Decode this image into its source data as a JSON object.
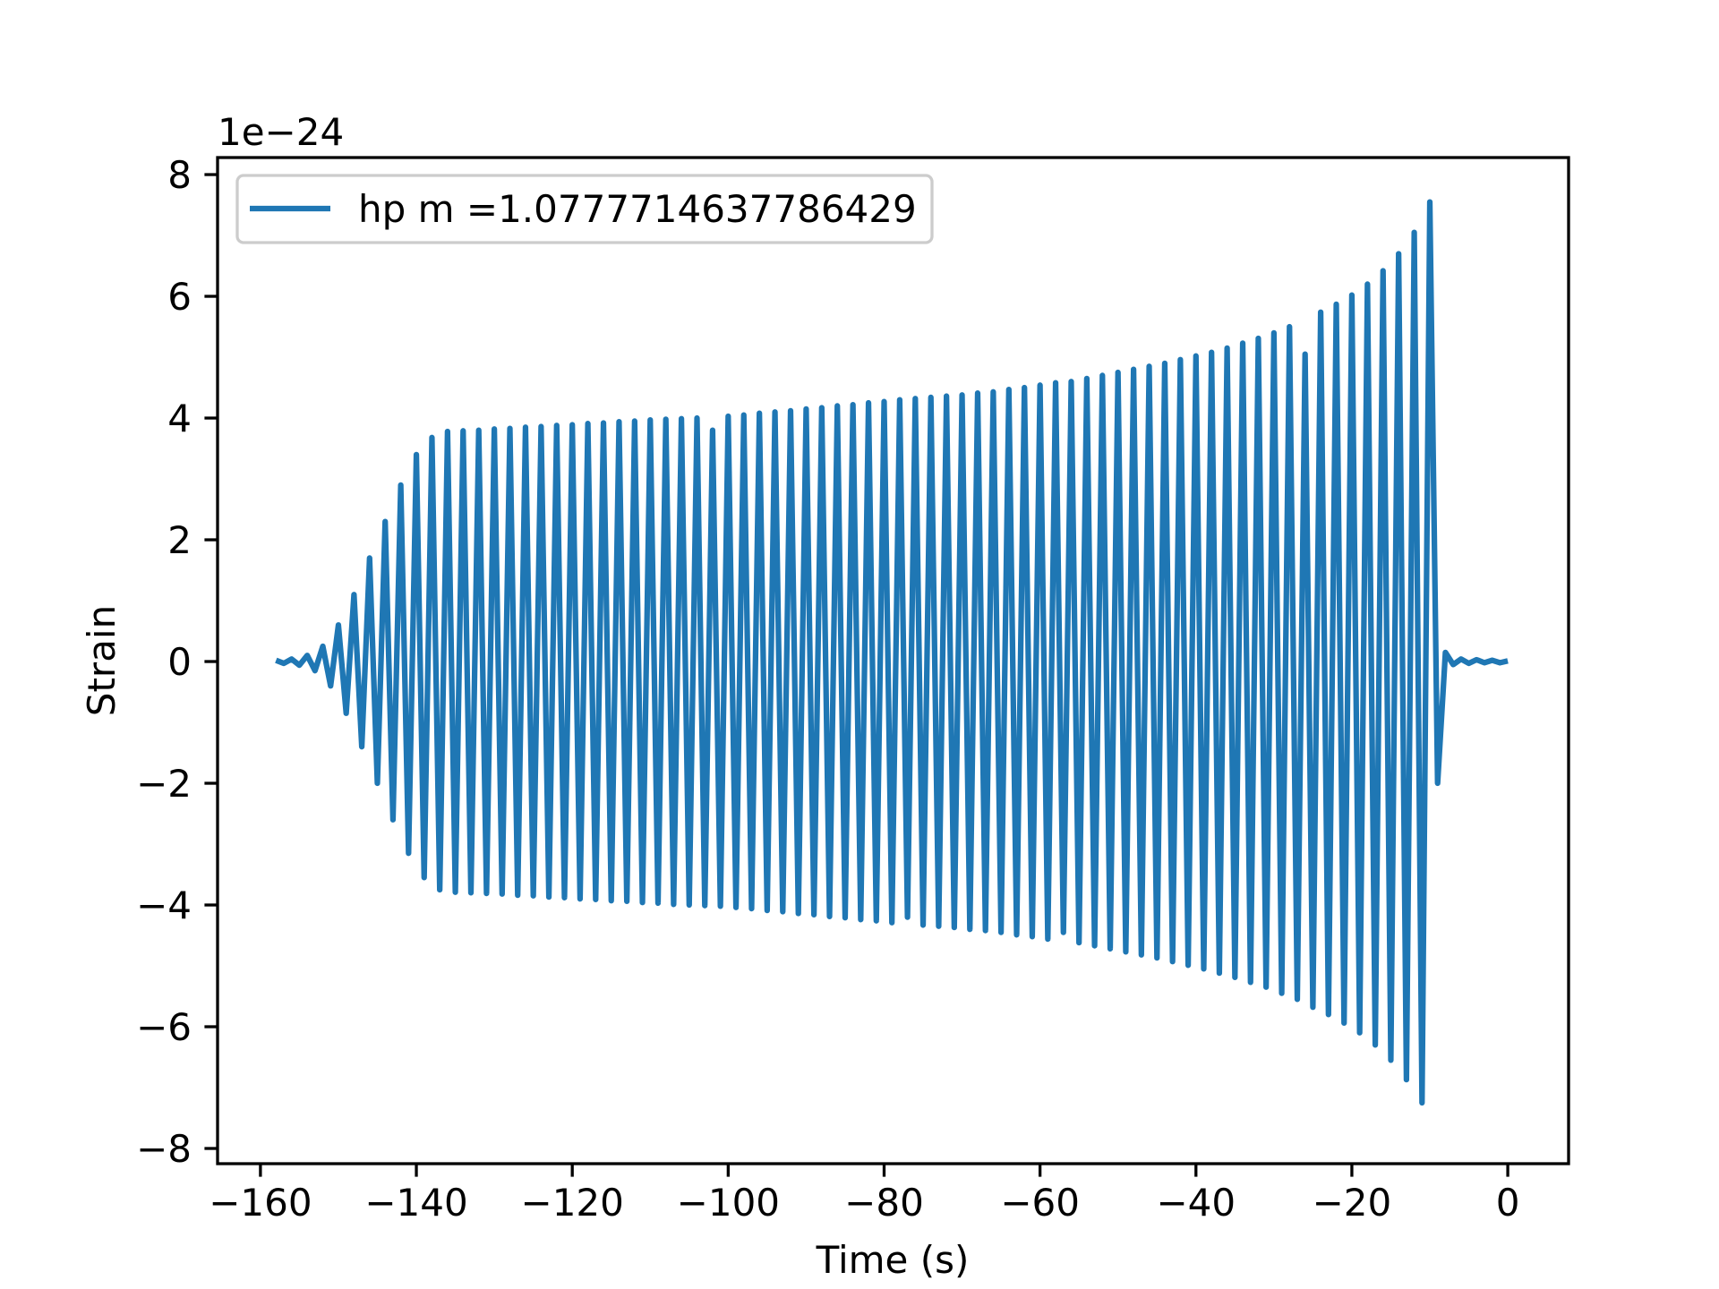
{
  "chart_data": {
    "type": "line",
    "x_label": "Time (s)",
    "y_label": "Strain",
    "offset_label": "1e−24",
    "legend": "upper left",
    "x": [
      -158,
      -157,
      -156,
      -155,
      -154,
      -153,
      -152,
      -151,
      -150,
      -149,
      -148,
      -147,
      -146,
      -145,
      -144,
      -143,
      -142,
      -141,
      -140,
      -139,
      -138,
      -137,
      -136,
      -135,
      -134,
      -133,
      -132,
      -131,
      -130,
      -129,
      -128,
      -127,
      -126,
      -125,
      -124,
      -123,
      -122,
      -121,
      -120,
      -119,
      -118,
      -117,
      -116,
      -115,
      -114,
      -113,
      -112,
      -111,
      -110,
      -109,
      -108,
      -107,
      -106,
      -105,
      -104,
      -103,
      -102,
      -101,
      -100,
      -99,
      -98,
      -97,
      -96,
      -95,
      -94,
      -93,
      -92,
      -91,
      -90,
      -89,
      -88,
      -87,
      -86,
      -85,
      -84,
      -83,
      -82,
      -81,
      -80,
      -79,
      -78,
      -77,
      -76,
      -75,
      -74,
      -73,
      -72,
      -71,
      -70,
      -69,
      -68,
      -67,
      -66,
      -65,
      -64,
      -63,
      -62,
      -61,
      -60,
      -59,
      -58,
      -57,
      -56,
      -55,
      -54,
      -53,
      -52,
      -51,
      -50,
      -49,
      -48,
      -47,
      -46,
      -45,
      -44,
      -43,
      -42,
      -41,
      -40,
      -39,
      -38,
      -37,
      -36,
      -35,
      -34,
      -33,
      -32,
      -31,
      -30,
      -29,
      -28,
      -27,
      -26,
      -25,
      -24,
      -23,
      -22,
      -21,
      -20,
      -19,
      -18,
      -17,
      -16,
      -15,
      -14,
      -13,
      -12,
      -11,
      -10,
      -9,
      -8,
      -7,
      -6,
      -5,
      -4,
      -3,
      -2,
      -1,
      0
    ],
    "series": [
      {
        "name": "hp m =1.0777714637786429",
        "color": "#1f77b4",
        "values": [
          0.02,
          -0.03,
          0.04,
          -0.06,
          0.1,
          -0.15,
          0.25,
          -0.4,
          0.6,
          -0.85,
          1.1,
          -1.4,
          1.7,
          -2.0,
          2.3,
          -2.6,
          2.9,
          -3.15,
          3.4,
          -3.55,
          3.68,
          -3.75,
          3.78,
          -3.79,
          3.79,
          -3.8,
          3.8,
          -3.81,
          3.82,
          -3.82,
          3.83,
          -3.84,
          3.85,
          -3.85,
          3.86,
          -3.87,
          3.88,
          -3.88,
          3.89,
          -3.9,
          3.91,
          -3.91,
          3.92,
          -3.93,
          3.94,
          -3.94,
          3.95,
          -3.96,
          3.97,
          -3.97,
          3.98,
          -3.99,
          3.99,
          -4.0,
          4.0,
          -4.01,
          3.8,
          -4.02,
          4.03,
          -4.04,
          4.05,
          -4.06,
          4.08,
          -4.09,
          4.1,
          -4.11,
          4.12,
          -4.14,
          4.15,
          -4.16,
          4.17,
          -4.19,
          4.2,
          -4.21,
          4.22,
          -4.24,
          4.25,
          -4.26,
          4.27,
          -4.29,
          4.3,
          -4.2,
          4.32,
          -4.33,
          4.34,
          -4.35,
          4.36,
          -4.37,
          4.38,
          -4.4,
          4.41,
          -4.42,
          4.43,
          -4.45,
          4.47,
          -4.49,
          4.5,
          -4.52,
          4.54,
          -4.56,
          4.58,
          -4.45,
          4.6,
          -4.62,
          4.65,
          -4.67,
          4.7,
          -4.72,
          4.75,
          -4.77,
          4.8,
          -4.82,
          4.85,
          -4.87,
          4.9,
          -4.93,
          4.96,
          -4.99,
          5.02,
          -5.05,
          5.08,
          -5.12,
          5.15,
          -5.19,
          5.23,
          -5.27,
          5.31,
          -5.35,
          5.4,
          -5.45,
          5.5,
          -5.55,
          5.05,
          -5.68,
          5.74,
          -5.8,
          5.87,
          -5.94,
          6.02,
          -6.1,
          6.2,
          -6.3,
          6.42,
          -6.55,
          6.7,
          -6.87,
          7.05,
          -7.25,
          7.55,
          -2.0,
          0.15,
          -0.05,
          0.04,
          -0.03,
          0.03,
          -0.02,
          0.02,
          -0.02,
          0.01
        ]
      }
    ],
    "xlim": [
      -165.5,
      7.8
    ],
    "ylim": [
      -8.25,
      8.28
    ],
    "xticks": [
      {
        "value": -160,
        "label": "−160"
      },
      {
        "value": -140,
        "label": "−140"
      },
      {
        "value": -120,
        "label": "−120"
      },
      {
        "value": -100,
        "label": "−100"
      },
      {
        "value": -80,
        "label": "−80"
      },
      {
        "value": -60,
        "label": "−60"
      },
      {
        "value": -40,
        "label": "−40"
      },
      {
        "value": -20,
        "label": "−20"
      },
      0
    ],
    "yticks": [
      {
        "value": -8,
        "label": "−8"
      },
      {
        "value": -6,
        "label": "−6"
      },
      {
        "value": -4,
        "label": "−4"
      },
      {
        "value": -2,
        "label": "−2"
      },
      0,
      2,
      4,
      6,
      8
    ]
  }
}
